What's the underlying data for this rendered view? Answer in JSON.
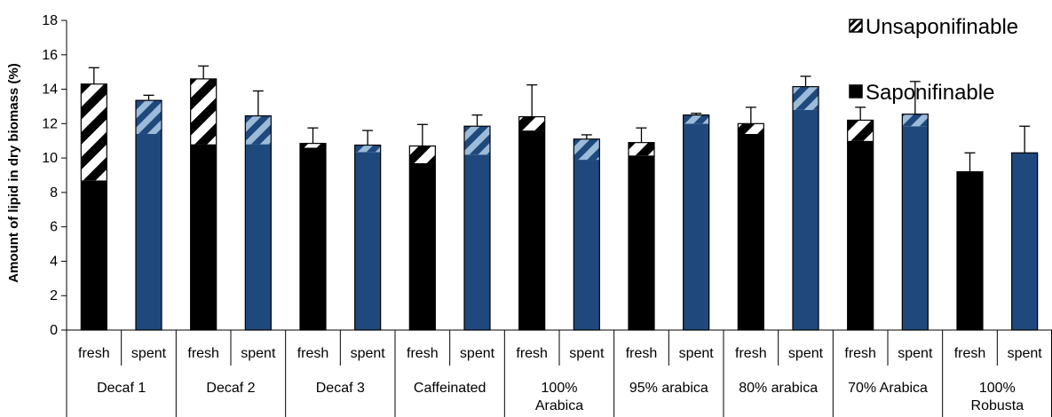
{
  "chart_data": {
    "type": "bar",
    "stacked": true,
    "ylabel": "Amount of lipid in dry biomass (%)",
    "ylim": [
      0,
      18
    ],
    "yticks": [
      0,
      2,
      4,
      6,
      8,
      10,
      12,
      14,
      16,
      18
    ],
    "legend": {
      "position": "top-right",
      "entries": [
        "Unsaponifinable",
        "Saponifinable"
      ]
    },
    "colors": {
      "fresh": "#000000",
      "spent": "#1f497d",
      "stripe_fresh": "#ffffff",
      "stripe_spent": "#9bbbd9"
    },
    "groups": [
      {
        "label": [
          "Decaf 1"
        ],
        "bars": [
          {
            "sub": "fresh",
            "saponifinable": 8.7,
            "unsaponifinable": 5.6,
            "error": 0.95
          },
          {
            "sub": "spent",
            "saponifinable": 11.4,
            "unsaponifinable": 1.95,
            "error": 0.3
          }
        ]
      },
      {
        "label": [
          "Decaf 2"
        ],
        "bars": [
          {
            "sub": "fresh",
            "saponifinable": 10.8,
            "unsaponifinable": 3.8,
            "error": 0.75
          },
          {
            "sub": "spent",
            "saponifinable": 10.8,
            "unsaponifinable": 1.65,
            "error": 1.45
          }
        ]
      },
      {
        "label": [
          "Decaf 3"
        ],
        "bars": [
          {
            "sub": "fresh",
            "saponifinable": 10.6,
            "unsaponifinable": 0.25,
            "error": 0.9
          },
          {
            "sub": "spent",
            "saponifinable": 10.35,
            "unsaponifinable": 0.4,
            "error": 0.85
          }
        ]
      },
      {
        "label": [
          "Caffeinated"
        ],
        "bars": [
          {
            "sub": "fresh",
            "saponifinable": 9.7,
            "unsaponifinable": 1.0,
            "error": 1.25
          },
          {
            "sub": "spent",
            "saponifinable": 10.2,
            "unsaponifinable": 1.65,
            "error": 0.65
          }
        ]
      },
      {
        "label": [
          "100%",
          "Arabica"
        ],
        "bars": [
          {
            "sub": "fresh",
            "saponifinable": 11.6,
            "unsaponifinable": 0.8,
            "error": 1.85
          },
          {
            "sub": "spent",
            "saponifinable": 9.9,
            "unsaponifinable": 1.2,
            "error": 0.25
          }
        ]
      },
      {
        "label": [
          "95% arabica"
        ],
        "bars": [
          {
            "sub": "fresh",
            "saponifinable": 10.15,
            "unsaponifinable": 0.75,
            "error": 0.85
          },
          {
            "sub": "spent",
            "saponifinable": 12.0,
            "unsaponifinable": 0.5,
            "error": 0.1
          }
        ]
      },
      {
        "label": [
          "80% arabica"
        ],
        "bars": [
          {
            "sub": "fresh",
            "saponifinable": 11.4,
            "unsaponifinable": 0.6,
            "error": 0.95
          },
          {
            "sub": "spent",
            "saponifinable": 12.8,
            "unsaponifinable": 1.35,
            "error": 0.6
          }
        ]
      },
      {
        "label": [
          "70% Arabica"
        ],
        "bars": [
          {
            "sub": "fresh",
            "saponifinable": 11.0,
            "unsaponifinable": 1.2,
            "error": 0.75
          },
          {
            "sub": "spent",
            "saponifinable": 11.85,
            "unsaponifinable": 0.7,
            "error": 1.9
          }
        ]
      },
      {
        "label": [
          "100%",
          "Robusta"
        ],
        "bars": [
          {
            "sub": "fresh",
            "saponifinable": 9.2,
            "unsaponifinable": 0,
            "error": 1.1
          },
          {
            "sub": "spent",
            "saponifinable": 10.3,
            "unsaponifinable": 0,
            "error": 1.55
          }
        ]
      }
    ]
  }
}
